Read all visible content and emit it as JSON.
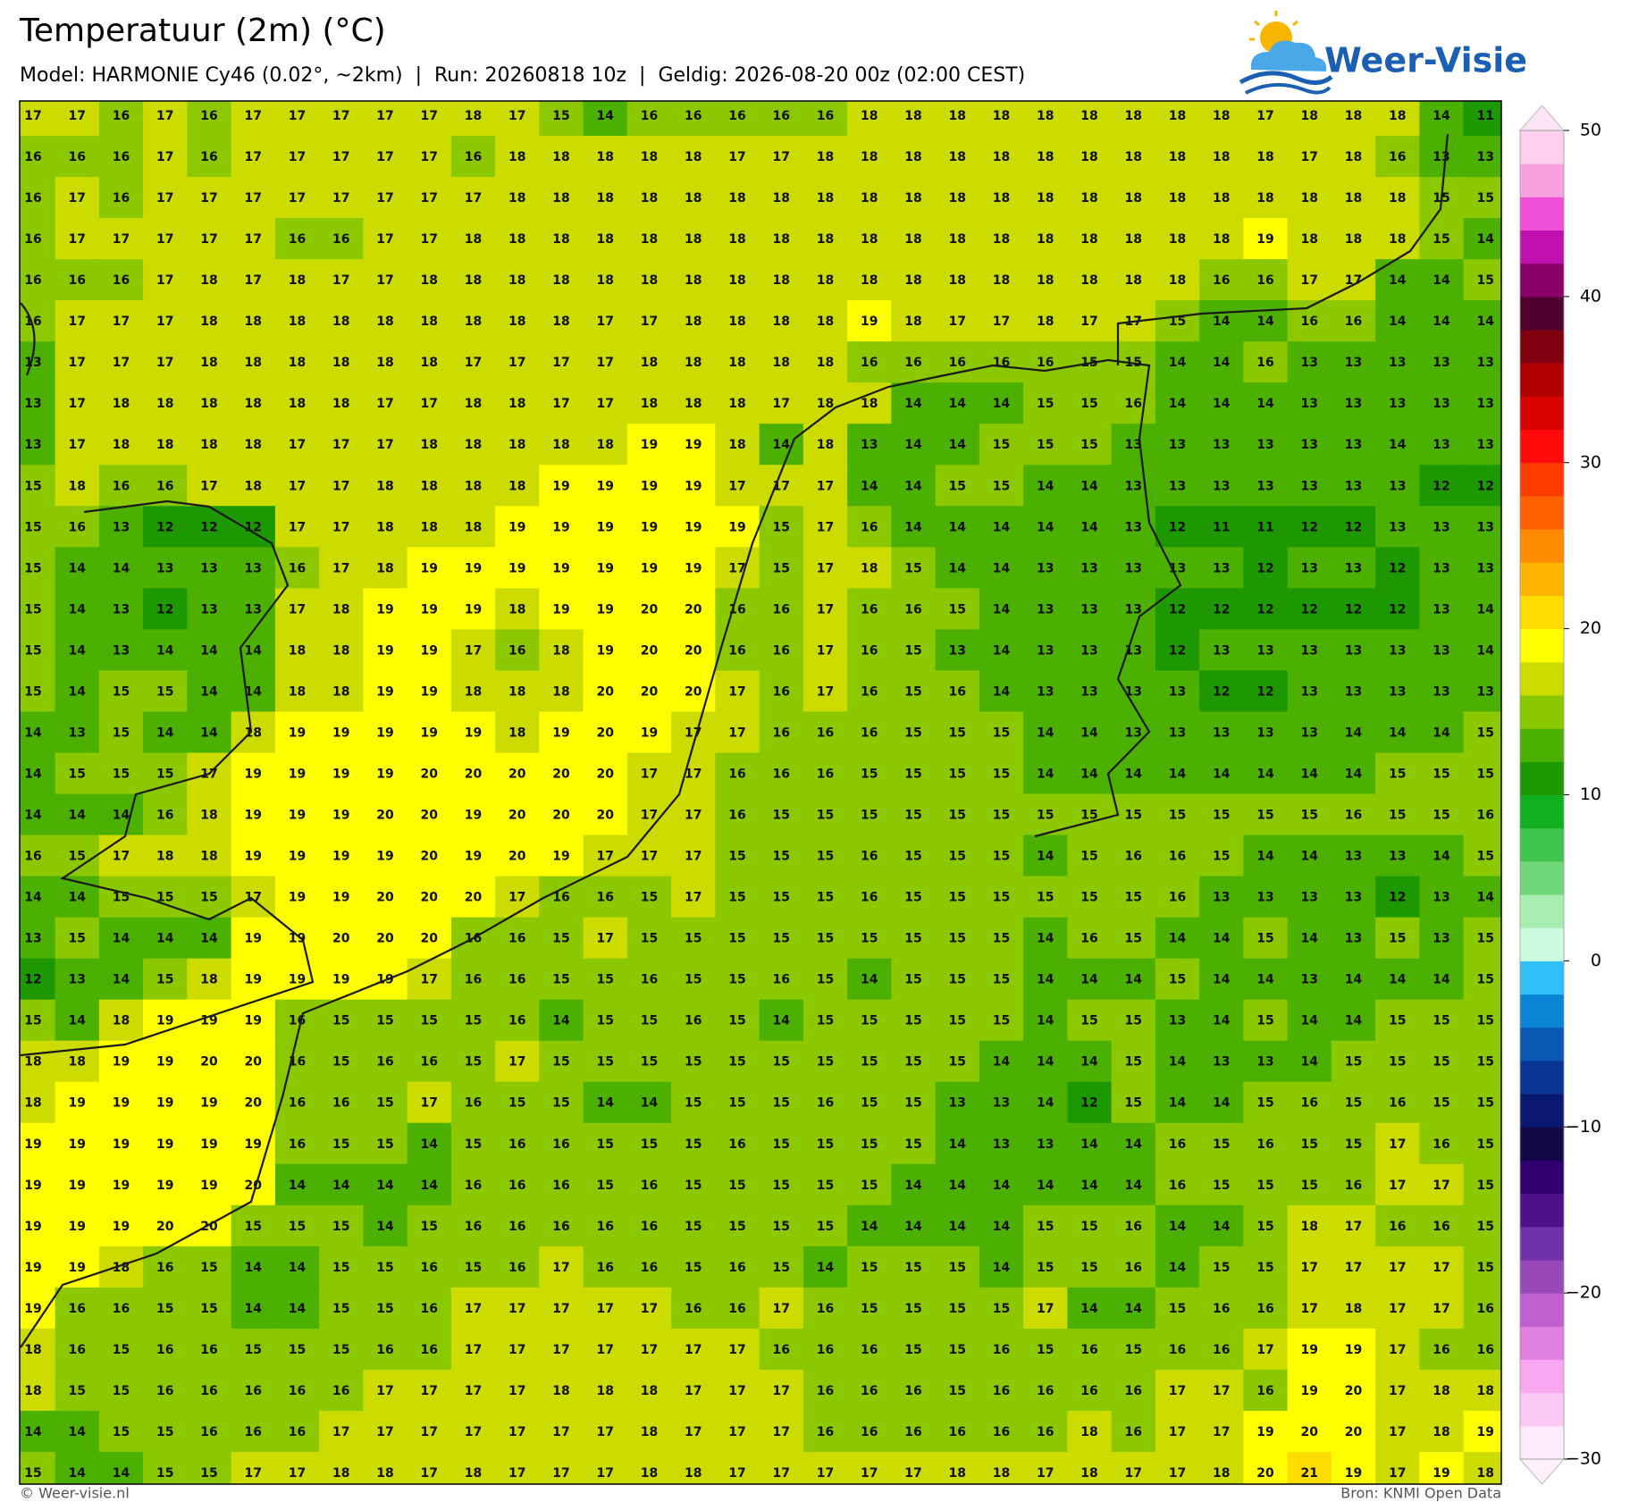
{
  "chart_data": {
    "type": "heatmap",
    "title": "Temperatuur (2m) (°C)",
    "subtitle": "Model: HARMONIE Cy46 (0.02°, ~2km)  |  Run: 20260818 10z  |  Geldig: 2026-08-20 00z (02:00 CEST)",
    "values": [
      [
        17,
        17,
        16,
        17,
        16,
        17,
        17,
        17,
        17,
        17,
        18,
        17,
        15,
        14,
        16,
        16,
        16,
        16,
        16,
        18,
        18,
        18,
        18,
        18,
        18,
        18,
        18,
        18,
        17,
        18,
        18,
        18,
        14,
        11
      ],
      [
        16,
        16,
        16,
        17,
        16,
        17,
        17,
        17,
        17,
        17,
        16,
        18,
        18,
        18,
        18,
        18,
        17,
        17,
        18,
        18,
        18,
        18,
        18,
        18,
        18,
        18,
        18,
        18,
        18,
        17,
        18,
        16,
        13,
        13
      ],
      [
        16,
        17,
        16,
        17,
        17,
        17,
        17,
        17,
        17,
        17,
        17,
        18,
        18,
        18,
        18,
        18,
        18,
        18,
        18,
        18,
        18,
        18,
        18,
        18,
        18,
        18,
        18,
        18,
        18,
        18,
        18,
        18,
        15,
        15
      ],
      [
        16,
        17,
        17,
        17,
        17,
        17,
        16,
        16,
        17,
        17,
        18,
        18,
        18,
        18,
        18,
        18,
        18,
        18,
        18,
        18,
        18,
        18,
        18,
        18,
        18,
        18,
        18,
        18,
        19,
        18,
        18,
        18,
        15,
        14
      ],
      [
        16,
        16,
        16,
        17,
        18,
        17,
        18,
        17,
        17,
        18,
        18,
        18,
        18,
        18,
        18,
        18,
        18,
        18,
        18,
        18,
        18,
        18,
        18,
        18,
        18,
        18,
        18,
        16,
        16,
        17,
        17,
        14,
        14,
        15
      ],
      [
        16,
        17,
        17,
        17,
        18,
        18,
        18,
        18,
        18,
        18,
        18,
        18,
        18,
        17,
        17,
        18,
        18,
        18,
        18,
        19,
        18,
        17,
        17,
        18,
        17,
        17,
        15,
        14,
        14,
        16,
        16,
        14,
        14,
        14
      ],
      [
        13,
        17,
        17,
        17,
        18,
        18,
        18,
        18,
        18,
        18,
        17,
        17,
        17,
        17,
        18,
        18,
        18,
        18,
        18,
        16,
        16,
        16,
        16,
        16,
        15,
        15,
        14,
        14,
        16,
        13,
        13,
        13,
        13,
        13
      ],
      [
        13,
        17,
        18,
        18,
        18,
        18,
        18,
        18,
        17,
        17,
        18,
        18,
        17,
        17,
        18,
        18,
        18,
        17,
        18,
        18,
        14,
        14,
        14,
        15,
        15,
        16,
        14,
        14,
        14,
        13,
        13,
        13,
        13,
        13
      ],
      [
        13,
        17,
        18,
        18,
        18,
        18,
        17,
        17,
        17,
        18,
        18,
        18,
        18,
        18,
        19,
        19,
        18,
        14,
        18,
        13,
        14,
        14,
        15,
        15,
        15,
        13,
        13,
        13,
        13,
        13,
        13,
        14,
        13,
        13
      ],
      [
        15,
        18,
        16,
        16,
        17,
        18,
        17,
        17,
        18,
        18,
        18,
        18,
        19,
        19,
        19,
        19,
        17,
        17,
        17,
        14,
        14,
        15,
        15,
        14,
        14,
        13,
        13,
        13,
        13,
        13,
        13,
        13,
        12,
        12
      ],
      [
        15,
        16,
        13,
        12,
        12,
        12,
        17,
        17,
        18,
        18,
        18,
        19,
        19,
        19,
        19,
        19,
        19,
        15,
        17,
        16,
        14,
        14,
        14,
        14,
        14,
        13,
        12,
        11,
        11,
        12,
        12,
        13,
        13,
        13
      ],
      [
        15,
        14,
        14,
        13,
        13,
        13,
        16,
        17,
        18,
        19,
        19,
        19,
        19,
        19,
        19,
        19,
        17,
        15,
        17,
        18,
        15,
        14,
        14,
        13,
        13,
        13,
        13,
        13,
        12,
        13,
        13,
        12,
        13,
        13
      ],
      [
        15,
        14,
        13,
        12,
        13,
        13,
        17,
        18,
        19,
        19,
        19,
        18,
        19,
        19,
        20,
        20,
        16,
        16,
        17,
        16,
        16,
        15,
        14,
        13,
        13,
        13,
        12,
        12,
        12,
        12,
        12,
        12,
        13,
        14
      ],
      [
        15,
        14,
        13,
        14,
        14,
        14,
        18,
        18,
        19,
        19,
        17,
        16,
        18,
        19,
        20,
        20,
        16,
        16,
        17,
        16,
        15,
        13,
        14,
        13,
        13,
        13,
        12,
        13,
        13,
        13,
        13,
        13,
        13,
        14
      ],
      [
        15,
        14,
        15,
        15,
        14,
        14,
        18,
        18,
        19,
        19,
        18,
        18,
        18,
        20,
        20,
        20,
        17,
        16,
        17,
        16,
        15,
        16,
        14,
        13,
        13,
        13,
        13,
        12,
        12,
        13,
        13,
        13,
        13,
        13
      ],
      [
        14,
        13,
        15,
        14,
        14,
        18,
        19,
        19,
        19,
        19,
        19,
        18,
        19,
        20,
        19,
        17,
        17,
        16,
        16,
        16,
        15,
        15,
        15,
        14,
        14,
        13,
        13,
        13,
        13,
        13,
        14,
        14,
        14,
        15
      ],
      [
        14,
        15,
        15,
        15,
        17,
        19,
        19,
        19,
        19,
        20,
        20,
        20,
        20,
        20,
        17,
        17,
        16,
        16,
        16,
        15,
        15,
        15,
        15,
        14,
        14,
        14,
        14,
        14,
        14,
        14,
        14,
        15,
        15,
        15
      ],
      [
        14,
        14,
        14,
        16,
        18,
        19,
        19,
        19,
        20,
        20,
        19,
        20,
        20,
        20,
        17,
        17,
        16,
        15,
        15,
        15,
        15,
        15,
        15,
        15,
        15,
        15,
        15,
        15,
        15,
        15,
        16,
        15,
        15,
        16
      ],
      [
        16,
        15,
        17,
        18,
        18,
        19,
        19,
        19,
        19,
        20,
        19,
        20,
        19,
        17,
        17,
        17,
        15,
        15,
        15,
        16,
        15,
        15,
        15,
        14,
        15,
        16,
        16,
        15,
        14,
        14,
        13,
        13,
        14,
        15
      ],
      [
        14,
        14,
        15,
        15,
        15,
        17,
        19,
        19,
        20,
        20,
        20,
        17,
        16,
        16,
        15,
        17,
        15,
        15,
        15,
        16,
        15,
        15,
        15,
        15,
        15,
        15,
        16,
        13,
        13,
        13,
        13,
        12,
        13,
        14
      ],
      [
        13,
        15,
        14,
        14,
        14,
        19,
        19,
        20,
        20,
        20,
        16,
        16,
        15,
        17,
        15,
        15,
        15,
        15,
        15,
        15,
        15,
        15,
        15,
        14,
        16,
        15,
        14,
        14,
        15,
        14,
        13,
        15,
        13,
        15
      ],
      [
        12,
        13,
        14,
        15,
        18,
        19,
        19,
        19,
        19,
        17,
        16,
        16,
        15,
        15,
        16,
        15,
        15,
        16,
        15,
        14,
        15,
        15,
        15,
        14,
        14,
        14,
        15,
        14,
        14,
        13,
        14,
        14,
        14,
        15
      ],
      [
        15,
        14,
        18,
        19,
        19,
        19,
        16,
        15,
        15,
        15,
        15,
        16,
        14,
        15,
        15,
        16,
        15,
        14,
        15,
        15,
        15,
        15,
        15,
        14,
        15,
        15,
        13,
        14,
        15,
        14,
        14,
        15,
        15,
        15
      ],
      [
        18,
        18,
        19,
        19,
        20,
        20,
        16,
        15,
        16,
        16,
        15,
        17,
        15,
        15,
        15,
        15,
        15,
        15,
        15,
        15,
        15,
        15,
        14,
        14,
        14,
        15,
        14,
        13,
        13,
        14,
        15,
        15,
        15,
        15
      ],
      [
        18,
        19,
        19,
        19,
        19,
        20,
        16,
        16,
        15,
        17,
        16,
        15,
        15,
        14,
        14,
        15,
        15,
        15,
        16,
        15,
        15,
        13,
        13,
        14,
        12,
        15,
        14,
        14,
        15,
        16,
        15,
        16,
        15,
        15
      ],
      [
        19,
        19,
        19,
        19,
        19,
        19,
        16,
        15,
        15,
        14,
        15,
        16,
        16,
        15,
        15,
        15,
        16,
        15,
        15,
        15,
        15,
        14,
        13,
        13,
        14,
        14,
        16,
        15,
        16,
        15,
        15,
        17,
        16,
        15
      ],
      [
        19,
        19,
        19,
        19,
        19,
        20,
        14,
        14,
        14,
        14,
        16,
        16,
        16,
        15,
        16,
        15,
        15,
        15,
        15,
        15,
        14,
        14,
        14,
        14,
        14,
        14,
        16,
        15,
        15,
        15,
        16,
        17,
        17,
        15
      ],
      [
        19,
        19,
        19,
        20,
        20,
        15,
        15,
        15,
        14,
        15,
        16,
        16,
        16,
        16,
        16,
        15,
        15,
        15,
        15,
        14,
        14,
        14,
        14,
        15,
        15,
        16,
        14,
        14,
        15,
        18,
        17,
        16,
        16,
        15
      ],
      [
        19,
        19,
        18,
        16,
        15,
        14,
        14,
        15,
        15,
        16,
        15,
        16,
        17,
        16,
        16,
        15,
        16,
        15,
        14,
        15,
        15,
        15,
        14,
        15,
        15,
        16,
        14,
        15,
        15,
        17,
        17,
        17,
        17,
        15
      ],
      [
        19,
        16,
        16,
        15,
        15,
        14,
        14,
        15,
        15,
        16,
        17,
        17,
        17,
        17,
        17,
        16,
        16,
        17,
        16,
        15,
        15,
        15,
        15,
        17,
        14,
        14,
        15,
        16,
        16,
        17,
        18,
        17,
        17,
        16
      ],
      [
        18,
        16,
        15,
        16,
        16,
        15,
        15,
        15,
        16,
        16,
        17,
        17,
        17,
        17,
        17,
        17,
        17,
        16,
        16,
        16,
        15,
        15,
        16,
        15,
        16,
        15,
        16,
        16,
        17,
        19,
        19,
        17,
        16,
        16
      ],
      [
        18,
        15,
        15,
        16,
        16,
        16,
        16,
        16,
        17,
        17,
        17,
        17,
        18,
        18,
        18,
        17,
        17,
        17,
        16,
        16,
        16,
        15,
        16,
        16,
        16,
        16,
        17,
        17,
        16,
        19,
        20,
        17,
        18,
        18
      ],
      [
        14,
        14,
        15,
        15,
        16,
        16,
        16,
        17,
        17,
        17,
        17,
        17,
        17,
        17,
        18,
        17,
        17,
        17,
        16,
        16,
        16,
        16,
        16,
        16,
        18,
        16,
        17,
        17,
        19,
        20,
        20,
        17,
        18,
        19
      ],
      [
        15,
        14,
        14,
        15,
        15,
        17,
        17,
        18,
        18,
        17,
        18,
        17,
        17,
        17,
        18,
        18,
        17,
        17,
        17,
        17,
        17,
        18,
        18,
        17,
        18,
        17,
        17,
        18,
        20,
        21,
        19,
        17,
        19,
        18
      ]
    ],
    "colorbar": {
      "lim": [
        -30,
        50
      ],
      "ticks": [
        50,
        40,
        30,
        20,
        10,
        0,
        {
          "value": -10,
          "label": "−10"
        },
        {
          "value": -20,
          "label": "−20"
        },
        {
          "value": -30,
          "label": "−30"
        }
      ],
      "colors": [
        "#fdeafa",
        "#fcc8f4",
        "#f8a8f0",
        "#e080e0",
        "#c060d0",
        "#9848b8",
        "#7030a8",
        "#50108c",
        "#300070",
        "#140848",
        "#0a1870",
        "#0a3494",
        "#0a58b4",
        "#0a84d4",
        "#30c0f8",
        "#ccfce0",
        "#a8eeb0",
        "#70d878",
        "#40c450",
        "#10b020",
        "#1e9800",
        "#4cb000",
        "#8cc800",
        "#ccdc00",
        "#ffff00",
        "#ffdc00",
        "#ffb400",
        "#ff8c00",
        "#ff6000",
        "#ff3c00",
        "#ff0a0a",
        "#d80000",
        "#b00000",
        "#800010",
        "#50002e",
        "#880068",
        "#c010b0",
        "#f050d8",
        "#f8a0e0",
        "#fdd0f0"
      ],
      "extend_colors": [
        "#fff0fc",
        "#fde4f4"
      ]
    }
  },
  "logo": "Weer-Visie",
  "footer": {
    "left": "© Weer-visie.nl",
    "right": "Bron: KNMI Open Data"
  }
}
